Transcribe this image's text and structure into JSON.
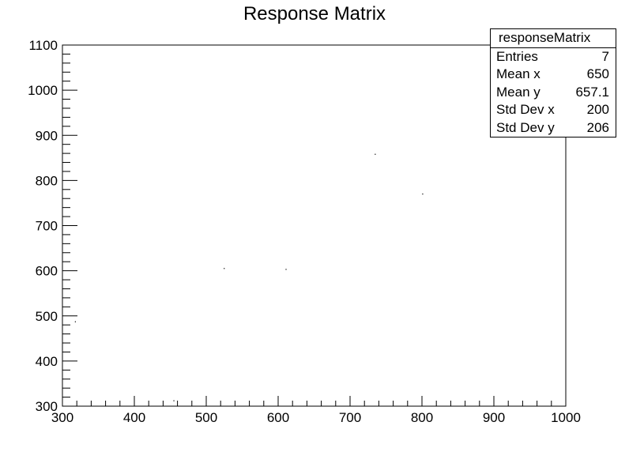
{
  "chart_data": {
    "type": "scatter",
    "title": "Response Matrix",
    "xlabel": "",
    "ylabel": "",
    "xlim": [
      300,
      1000
    ],
    "ylim": [
      300,
      1100
    ],
    "x_ticks": [
      300,
      400,
      500,
      600,
      700,
      800,
      900,
      1000
    ],
    "y_ticks": [
      300,
      400,
      500,
      600,
      700,
      800,
      900,
      1000,
      1100
    ],
    "grid": false,
    "points": [
      {
        "x": 318,
        "y": 487
      },
      {
        "x": 455,
        "y": 312
      },
      {
        "x": 525,
        "y": 605
      },
      {
        "x": 611,
        "y": 603
      },
      {
        "x": 735,
        "y": 858
      },
      {
        "x": 801,
        "y": 770
      }
    ],
    "stats_box": {
      "name": "responseMatrix",
      "rows": [
        {
          "label": "Entries",
          "value": "7"
        },
        {
          "label": "Mean x",
          "value": "650"
        },
        {
          "label": "Mean y",
          "value": "657.1"
        },
        {
          "label": "Std Dev x",
          "value": "200"
        },
        {
          "label": "Std Dev y",
          "value": "206"
        }
      ]
    }
  }
}
